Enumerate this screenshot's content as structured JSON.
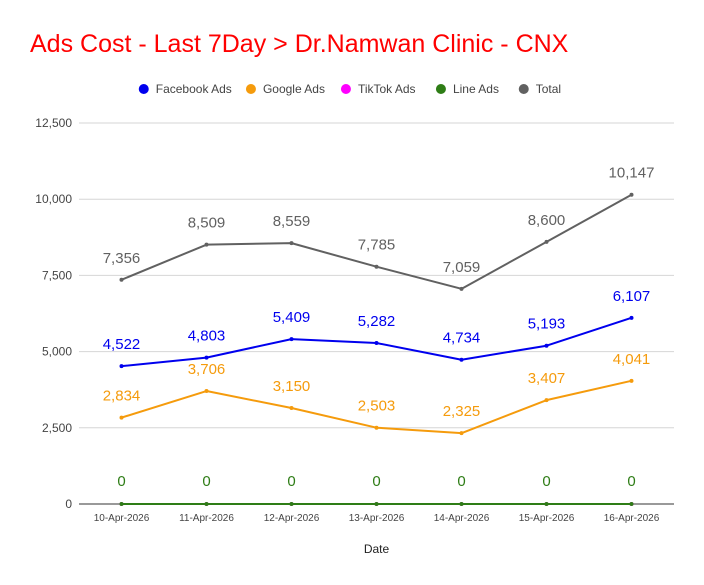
{
  "title": "Ads Cost - Last 7Day > Dr.Namwan Clinic - CNX",
  "chart_data": {
    "type": "line",
    "title": "Ads Cost - Last 7Day > Dr.Namwan Clinic - CNX",
    "xlabel": "Date",
    "ylabel": "",
    "ylim": [
      0,
      12500
    ],
    "yticks": [
      "0",
      "2,500",
      "5,000",
      "7,500",
      "10,000",
      "12,500"
    ],
    "ytick_values": [
      0,
      2500,
      5000,
      7500,
      10000,
      12500
    ],
    "grid": true,
    "legend_position": "top",
    "categories": [
      "10-Apr-2026",
      "11-Apr-2026",
      "12-Apr-2026",
      "13-Apr-2026",
      "14-Apr-2026",
      "15-Apr-2026",
      "16-Apr-2026"
    ],
    "series": [
      {
        "name": "Facebook Ads",
        "color": "#0000ee",
        "values": [
          4522,
          4803,
          5409,
          5282,
          4734,
          5193,
          6107
        ],
        "labels": [
          "4,522",
          "4,803",
          "5,409",
          "5,282",
          "4,734",
          "5,193",
          "6,107"
        ]
      },
      {
        "name": "Google Ads",
        "color": "#f59b0c",
        "values": [
          2834,
          3706,
          3150,
          2503,
          2325,
          3407,
          4041
        ],
        "labels": [
          "2,834",
          "3,706",
          "3,150",
          "2,503",
          "2,325",
          "3,407",
          "4,041"
        ]
      },
      {
        "name": "TikTok Ads",
        "color": "#ff00ff",
        "values": [
          0,
          0,
          0,
          0,
          0,
          0,
          0
        ],
        "labels": []
      },
      {
        "name": "Line Ads",
        "color": "#2e7d16",
        "values": [
          0,
          0,
          0,
          0,
          0,
          0,
          0
        ],
        "labels": [
          "0",
          "0",
          "0",
          "0",
          "0",
          "0",
          "0"
        ]
      },
      {
        "name": "Total",
        "color": "#616161",
        "values": [
          7356,
          8509,
          8559,
          7785,
          7059,
          8600,
          10147
        ],
        "labels": [
          "7,356",
          "8,509",
          "8,559",
          "7,785",
          "7,059",
          "8,600",
          "10,147"
        ]
      }
    ]
  }
}
